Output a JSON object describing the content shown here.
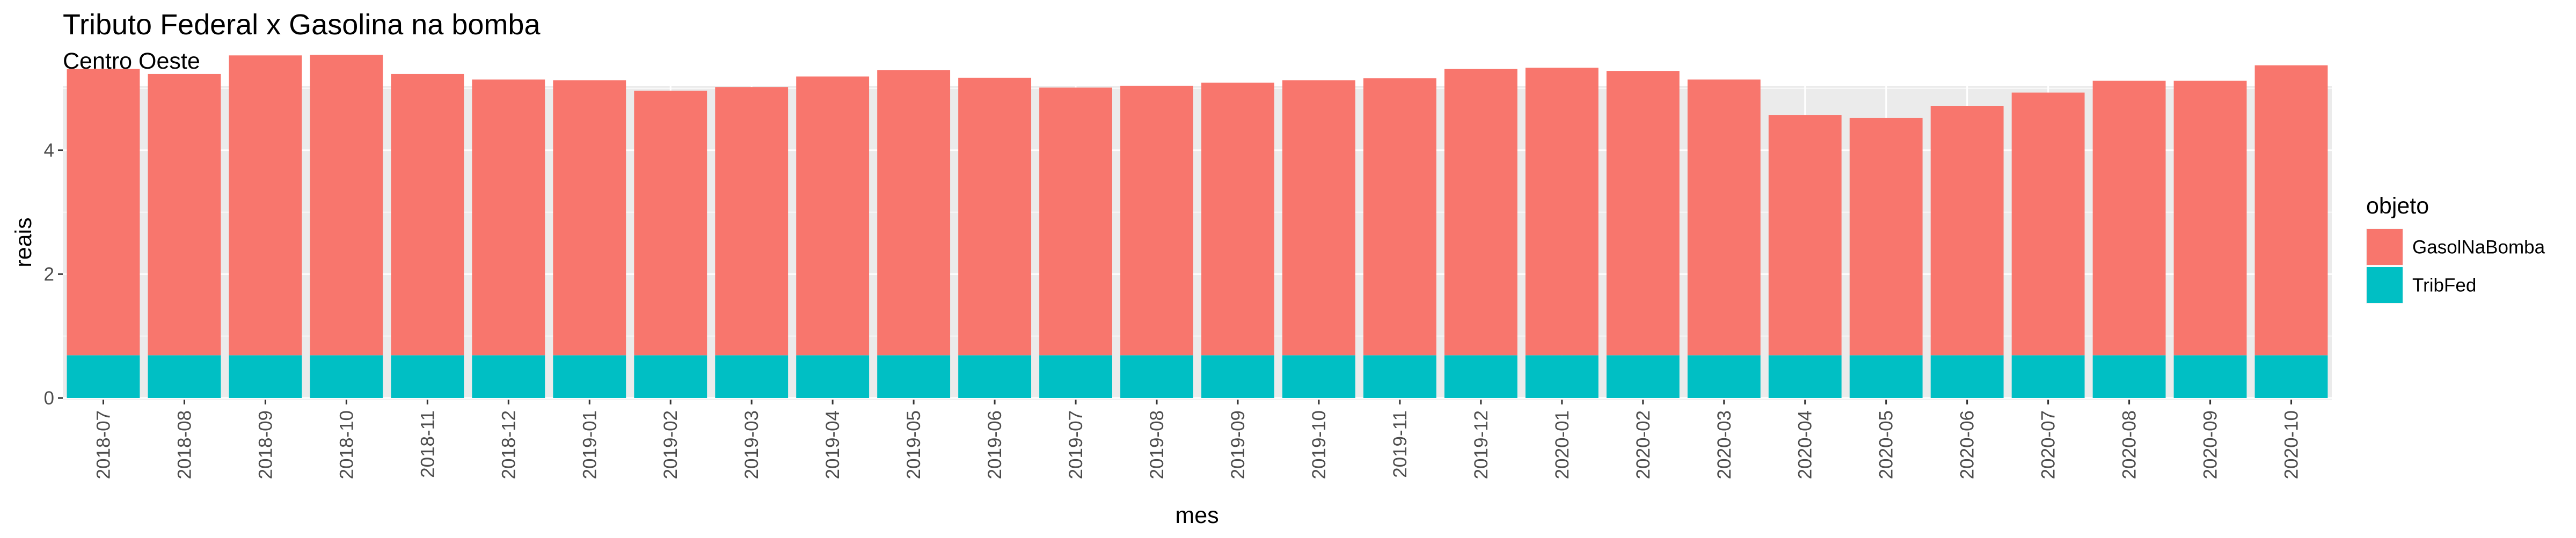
{
  "chart_data": {
    "type": "bar",
    "stacked": true,
    "title": "Tributo Federal x Gasolina na bomba",
    "subtitle": "Centro Oeste",
    "xlabel": "mes",
    "ylabel": "reais",
    "ylim": [
      0,
      5.6
    ],
    "yticks": [
      0,
      2,
      4
    ],
    "grid": true,
    "legend": {
      "title": "objeto",
      "position": "right",
      "entries": [
        "GasolNaBomba",
        "TribFed"
      ]
    },
    "categories": [
      "2018-07",
      "2018-08",
      "2018-09",
      "2018-10",
      "2018-11",
      "2018-12",
      "2019-01",
      "2019-02",
      "2019-03",
      "2019-04",
      "2019-05",
      "2019-06",
      "2019-07",
      "2019-08",
      "2019-09",
      "2019-10",
      "2019-11",
      "2019-12",
      "2020-01",
      "2020-02",
      "2020-03",
      "2020-04",
      "2020-05",
      "2020-06",
      "2020-07",
      "2020-08",
      "2020-09",
      "2020-10"
    ],
    "series": [
      {
        "name": "GasolNaBomba",
        "color": "#F8766D",
        "values": [
          4.62,
          4.54,
          4.84,
          4.85,
          4.54,
          4.45,
          4.44,
          4.27,
          4.33,
          4.5,
          4.6,
          4.48,
          4.32,
          4.35,
          4.4,
          4.44,
          4.47,
          4.62,
          4.64,
          4.59,
          4.45,
          3.88,
          3.83,
          4.02,
          4.24,
          4.43,
          4.43,
          4.68
        ]
      },
      {
        "name": "TribFed",
        "color": "#00BFC4",
        "values": [
          0.69,
          0.69,
          0.69,
          0.69,
          0.69,
          0.69,
          0.69,
          0.69,
          0.69,
          0.69,
          0.69,
          0.69,
          0.69,
          0.69,
          0.69,
          0.69,
          0.69,
          0.69,
          0.69,
          0.69,
          0.69,
          0.69,
          0.69,
          0.69,
          0.69,
          0.69,
          0.69,
          0.69
        ]
      }
    ]
  }
}
